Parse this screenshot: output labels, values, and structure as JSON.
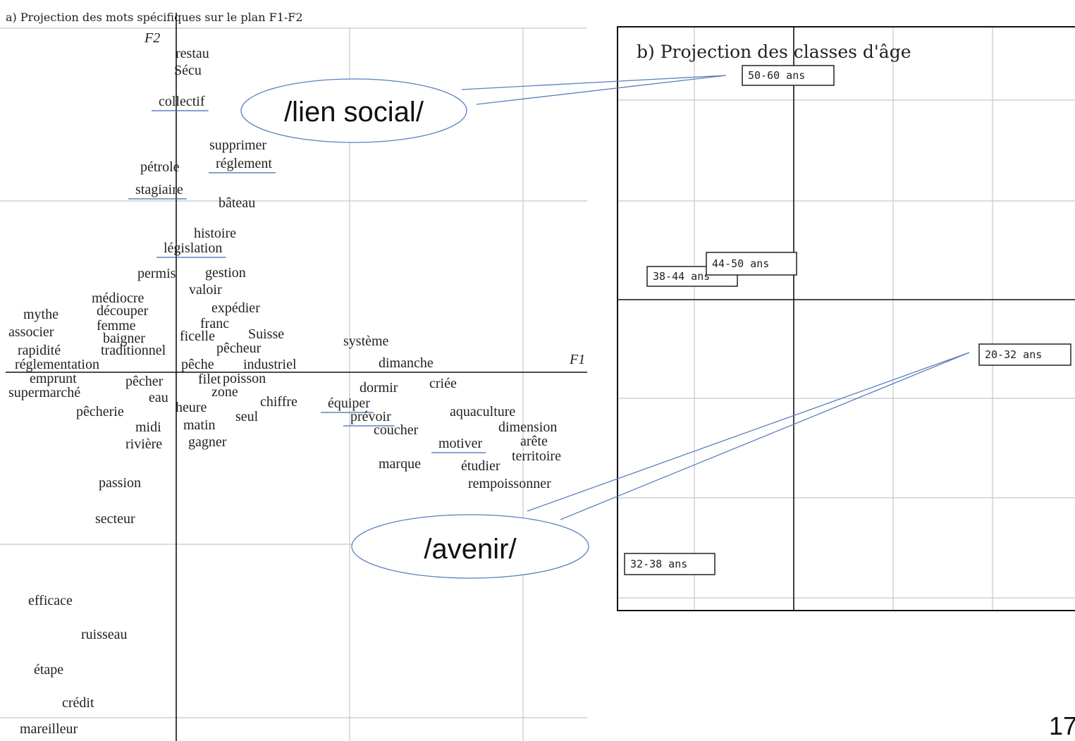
{
  "panel_a": {
    "title": "a) Projection des mots spécifiques sur le plan F1-F2",
    "axis_x": "F1",
    "axis_y": "F2",
    "words": [
      "restau",
      "Sécu",
      "collectif",
      "supprimer",
      "pétrole",
      "réglement",
      "stagiaire",
      "bâteau",
      "histoire",
      "législation",
      "permis",
      "gestion",
      "médiocre",
      "valoir",
      "découper",
      "expédier",
      "mythe",
      "femme",
      "franc",
      "associer",
      "baigner",
      "ficelle",
      "Suisse",
      "système",
      "rapidité",
      "traditionnel",
      "pêcheur",
      "réglementation",
      "pêche",
      "industriel",
      "dimanche",
      "emprunt",
      "pêcher",
      "filet",
      "poisson",
      "dormir",
      "criée",
      "supermarché",
      "zone",
      "eau",
      "chiffre",
      "équiper",
      "pêcherie",
      "heure",
      "prévoir",
      "aquaculture",
      "seul",
      "midi",
      "matin",
      "coucher",
      "dimension",
      "rivière",
      "gagner",
      "motiver",
      "arête",
      "territoire",
      "marque",
      "étudier",
      "rempoissonner",
      "passion",
      "secteur",
      "efficace",
      "ruisseau",
      "étape",
      "crédit",
      "mareilleur"
    ]
  },
  "panel_b": {
    "title": "b) Projection des classes d'âge",
    "classes": [
      "50-60 ans",
      "38-44 ans",
      "44-50 ans",
      "20-32 ans",
      "32-38 ans"
    ]
  },
  "callouts": [
    "/lien social/",
    "/avenir/"
  ],
  "page_number": "17"
}
